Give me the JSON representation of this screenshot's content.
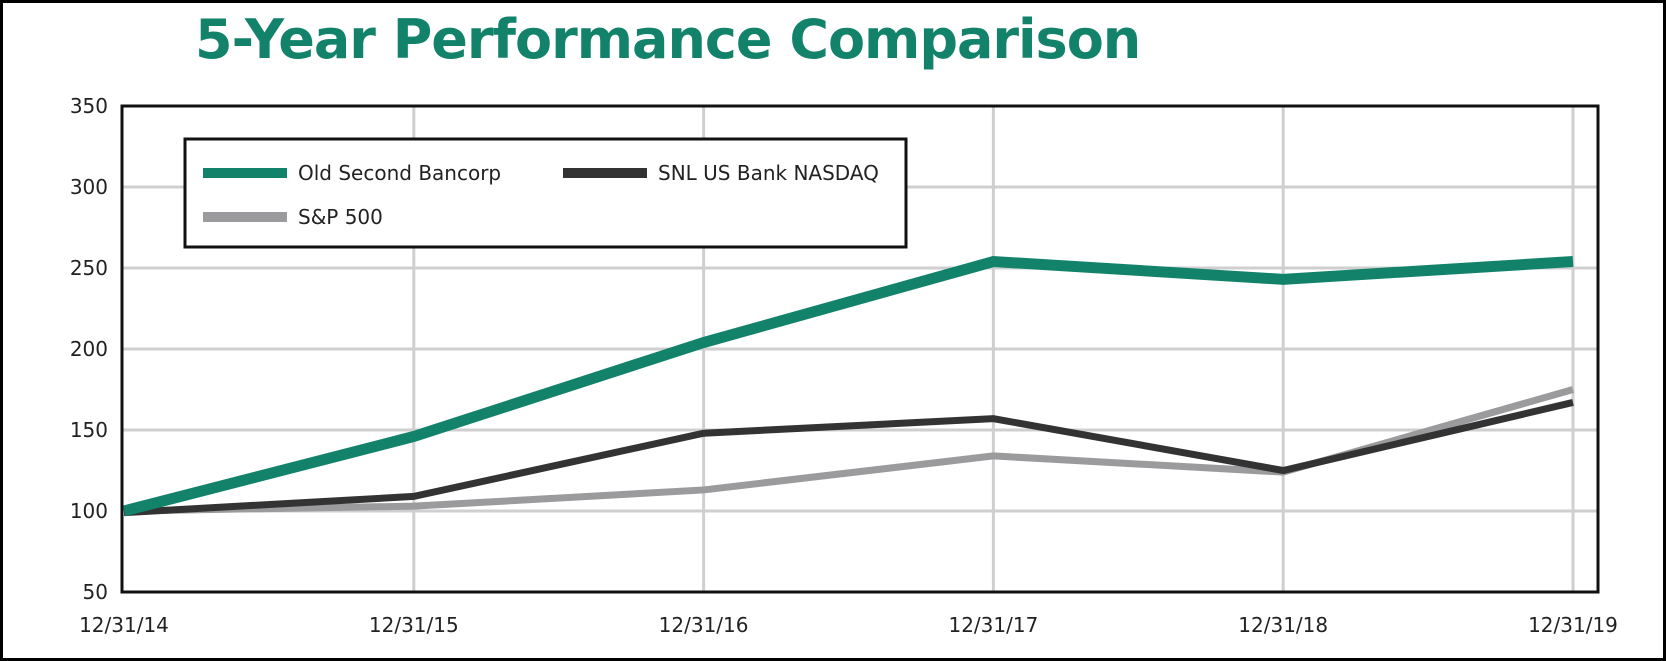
{
  "chart_data": {
    "type": "line",
    "title": "5-Year Performance Comparison",
    "xlabel": "",
    "ylabel": "",
    "categories": [
      "12/31/14",
      "12/31/15",
      "12/31/16",
      "12/31/17",
      "12/31/18",
      "12/31/19"
    ],
    "ylim": [
      50,
      350
    ],
    "yticks": [
      50,
      100,
      150,
      200,
      250,
      300,
      350
    ],
    "grid": true,
    "legend_position": "top-left",
    "series": [
      {
        "name": "Old Second Bancorp",
        "color": "#12836a",
        "values": [
          100,
          146,
          204,
          254,
          243,
          254
        ]
      },
      {
        "name": "SNL US Bank NASDAQ",
        "color": "#333333",
        "values": [
          99,
          109,
          148,
          157,
          125,
          167
        ]
      },
      {
        "name": "S&P 500",
        "color": "#9b9b9e",
        "values": [
          100,
          103,
          113,
          134,
          124,
          175
        ]
      }
    ]
  }
}
